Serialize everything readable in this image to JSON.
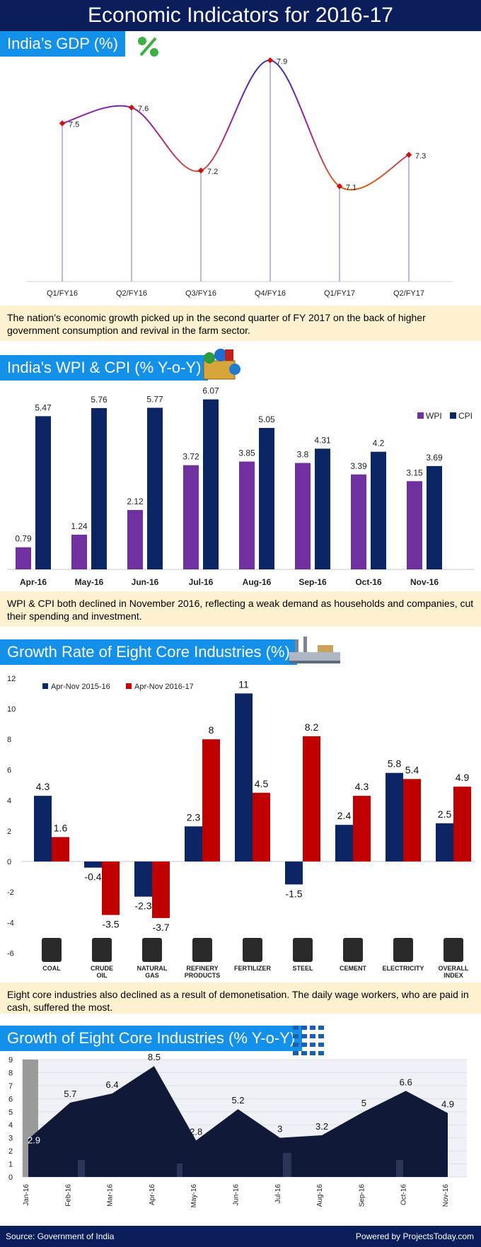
{
  "title": "Economic Indicators for 2016-17",
  "colors": {
    "navy": "#0b1e5b",
    "accent": "#1390ea",
    "wpi": "#7030a0",
    "cpi": "#0c2565",
    "red": "#c00000",
    "note": "#fdf1cf"
  },
  "gdp": {
    "label": "India’s GDP  (%)",
    "icon": "percent-icon",
    "note": "The nation’s economic growth picked up in the second quarter of FY 2017 on the back of higher government consumption and revival in the farm sector.",
    "chart_data": {
      "type": "line",
      "x": [
        "Q1/FY16",
        "Q2/FY16",
        "Q3/FY16",
        "Q4/FY16",
        "Q1/FY17",
        "Q2/FY17"
      ],
      "values": [
        7.5,
        7.6,
        7.2,
        7.9,
        7.1,
        7.3
      ],
      "ylim": [
        6.5,
        8.0
      ],
      "grid": false
    }
  },
  "wpicpi": {
    "label": "India's WPI & CPI (% Y-o-Y)",
    "icon": "shopping-basket-icon",
    "note": "WPI & CPI both declined in November 2016, reflecting a weak demand as households and companies, cut their spending and investment.",
    "chart_data": {
      "type": "bar",
      "categories": [
        "Apr-16",
        "May-16",
        "Jun-16",
        "Jul-16",
        "Aug-16",
        "Sep-16",
        "Oct-16",
        "Nov-16"
      ],
      "series": [
        {
          "name": "WPI",
          "values": [
            0.79,
            1.24,
            2.12,
            3.72,
            3.85,
            3.8,
            3.39,
            3.15
          ]
        },
        {
          "name": "CPI",
          "values": [
            5.47,
            5.76,
            5.77,
            6.07,
            5.05,
            4.31,
            4.2,
            3.69
          ]
        }
      ],
      "ylim": [
        0,
        6.5
      ],
      "legend": "top-right",
      "grid": false
    }
  },
  "core": {
    "label": "Growth Rate of Eight Core Industries (%)",
    "icon": "factory-icon",
    "note": "Eight core industries also declined as a result of demonetisation. The daily wage workers, who are paid in cash, suffered the most.",
    "chart_data": {
      "type": "bar",
      "categories": [
        "COAL",
        "CRUDE OIL",
        "NATURAL GAS",
        "REFINERY PRODUCTS",
        "FERTILIZER",
        "STEEL",
        "CEMENT",
        "ELECTRICITY",
        "OVERALL INDEX"
      ],
      "series": [
        {
          "name": "Apr-Nov 2015-16",
          "values": [
            4.3,
            -0.4,
            -2.3,
            2.3,
            11,
            -1.5,
            2.4,
            5.8,
            2.5
          ]
        },
        {
          "name": "Apr-Nov 2016-17",
          "values": [
            1.6,
            -3.5,
            -3.7,
            8,
            4.5,
            8.2,
            4.3,
            5.4,
            4.9
          ]
        }
      ],
      "yticks": [
        "12",
        "10",
        "8",
        "6",
        "4",
        "2",
        "0",
        "-2",
        "-4",
        "-6"
      ],
      "ylim": [
        -6,
        12
      ],
      "legend": "top-left",
      "grid": false
    },
    "category_icons": [
      "coal-cart-icon",
      "oil-barrel-icon",
      "gas-flame-icon",
      "refinery-drop-icon",
      "fertilizer-bag-icon",
      "steel-beams-icon",
      "cement-bags-icon",
      "power-tower-icon",
      "up-chevron-icon"
    ]
  },
  "growth": {
    "label": "Growth of Eight Core Industries (% Y-o-Y)",
    "icon": "industry-grid-icon",
    "chart_data": {
      "type": "area",
      "categories": [
        "Jan-16",
        "Feb-16",
        "Mar-16",
        "Apr-16",
        "May-16",
        "Jun-16",
        "Jul-16",
        "Aug-16",
        "Sep-16",
        "Oct-16",
        "Nov-16"
      ],
      "values": [
        2.9,
        5.7,
        6.4,
        8.5,
        2.8,
        5.2,
        3,
        3.2,
        5,
        6.6,
        4.9
      ],
      "yticks": [
        "9",
        "8",
        "7",
        "6",
        "5",
        "4",
        "3",
        "2",
        "1",
        "0"
      ],
      "ylim": [
        0,
        9
      ],
      "grid": true
    }
  },
  "footer": {
    "source": "Source: Government of India",
    "powered": "Powered by ProjectsToday.com"
  }
}
